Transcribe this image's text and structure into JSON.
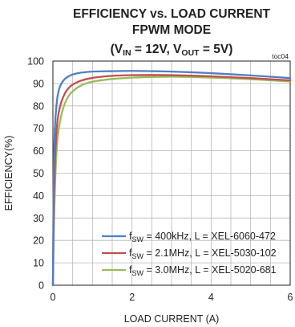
{
  "chart_data": {
    "type": "line",
    "title": {
      "line1": "EFFICIENCY vs. LOAD CURRENT",
      "line2": "FPWM MODE",
      "line3": {
        "open": "(V",
        "vin_sub": "IN",
        "mid": " = 12V, V",
        "vout_sub": "OUT",
        "close": " = 5V)"
      }
    },
    "annotation": "toc04",
    "xlabel": "LOAD CURRENT (A)",
    "ylabel": "EFFICIENCY(%)",
    "xlim": [
      0,
      6
    ],
    "ylim": [
      0,
      100
    ],
    "xticks": [
      "0",
      "2",
      "4",
      "6"
    ],
    "yticks": [
      "0",
      "10",
      "20",
      "30",
      "40",
      "50",
      "60",
      "70",
      "80",
      "90",
      "100"
    ],
    "grid": true,
    "legend_position": "bottom-right",
    "series": [
      {
        "legend": {
          "pre": "f",
          "sub": "SW",
          "post": " = 400kHz, L = XEL-6060-472"
        },
        "color": "#4f7fc3",
        "x": [
          0,
          0.02,
          0.05,
          0.1,
          0.15,
          0.2,
          0.3,
          0.4,
          0.5,
          0.7,
          1.0,
          1.5,
          2.0,
          2.5,
          3.0,
          3.5,
          4.0,
          4.5,
          5.0,
          5.5,
          6.0
        ],
        "y": [
          0,
          48,
          70,
          82,
          87,
          89.5,
          92,
          93.2,
          94,
          94.8,
          95.3,
          95.5,
          95.6,
          95.5,
          95.3,
          95,
          94.6,
          94.1,
          93.6,
          93,
          92.4
        ]
      },
      {
        "legend": {
          "pre": "f",
          "sub": "SW",
          "post": " = 2.1MHz, L = XEL-5030-102"
        },
        "color": "#c0504d",
        "x": [
          0,
          0.03,
          0.07,
          0.12,
          0.2,
          0.3,
          0.4,
          0.5,
          0.7,
          1.0,
          1.5,
          2.0,
          2.5,
          3.0,
          3.5,
          4.0,
          4.5,
          5.0,
          5.5,
          6.0
        ],
        "y": [
          0,
          40,
          62,
          74,
          81,
          85.5,
          88,
          89.5,
          91.2,
          92.5,
          93.4,
          93.7,
          93.8,
          93.7,
          93.5,
          93.2,
          92.8,
          92.4,
          91.9,
          91.4
        ]
      },
      {
        "legend": {
          "pre": "f",
          "sub": "SW",
          "post": " = 3.0MHz, L = XEL-5020-681"
        },
        "color": "#9bbb59",
        "x": [
          0,
          0.03,
          0.07,
          0.12,
          0.2,
          0.3,
          0.4,
          0.5,
          0.7,
          1.0,
          1.5,
          2.0,
          2.5,
          3.0,
          3.5,
          4.0,
          4.5,
          5.0,
          5.5,
          6.0
        ],
        "y": [
          0,
          30,
          52,
          66,
          75,
          81,
          84.5,
          86.5,
          89,
          90.8,
          92,
          92.6,
          92.9,
          93,
          92.9,
          92.6,
          92.3,
          91.9,
          91.4,
          90.9
        ]
      }
    ]
  }
}
